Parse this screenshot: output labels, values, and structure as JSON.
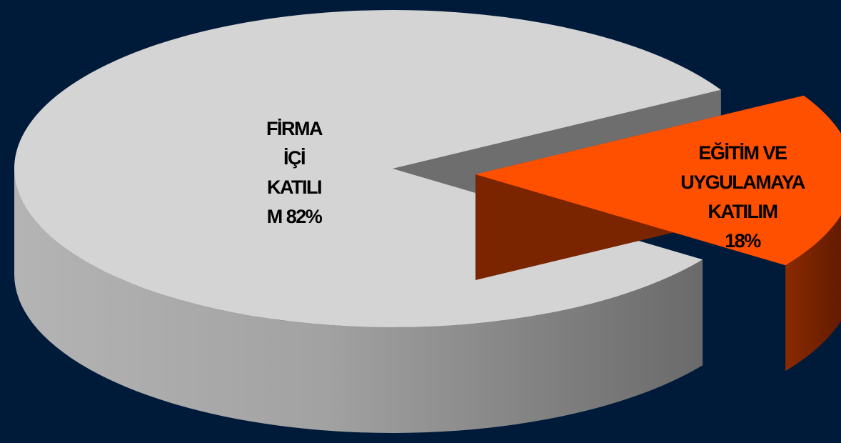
{
  "chart_data": {
    "type": "pie",
    "style": "3d-exploded",
    "slices": [
      {
        "value": 82,
        "label_lines": [
          "FİRMA",
          "İÇİ",
          "KATILI",
          "M 82%"
        ],
        "color": "#d4d4d4",
        "exploded": false
      },
      {
        "value": 18,
        "label_lines": [
          "EĞİTİM VE",
          "UYGULAMAYA",
          "KATILIM",
          "18%"
        ],
        "color": "#ff5000",
        "exploded": true
      }
    ],
    "legend": "none"
  }
}
